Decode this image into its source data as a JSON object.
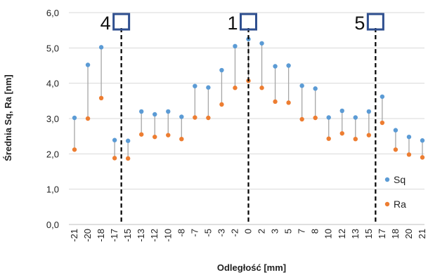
{
  "chart_data": {
    "type": "scatter",
    "title": "",
    "xlabel": "Odległość [mm]",
    "ylabel": "Średnia Sq, Ra [nm]",
    "ylim": [
      0,
      6
    ],
    "y_ticks": [
      "0,0",
      "1,0",
      "2,0",
      "3,0",
      "4,0",
      "5,0",
      "6,0"
    ],
    "grid": "horizontal",
    "legend_position": "right",
    "categories": [
      "-21",
      "-20",
      "-18",
      "-17",
      "-15",
      "-13",
      "-12",
      "-10",
      "-8",
      "-7",
      "-5",
      "-3",
      "-2",
      "0",
      "2",
      "3",
      "5",
      "7",
      "8",
      "10",
      "12",
      "13",
      "15",
      "17",
      "18",
      "20",
      "21"
    ],
    "series": [
      {
        "name": "Sq",
        "color": "#5B9BD5",
        "values": [
          3.02,
          4.52,
          5.02,
          2.39,
          2.37,
          3.2,
          3.12,
          3.2,
          3.05,
          3.92,
          3.88,
          4.37,
          5.05,
          5.25,
          5.13,
          4.48,
          4.5,
          3.93,
          3.85,
          3.03,
          3.22,
          3.03,
          3.2,
          3.62,
          2.67,
          2.48,
          2.38
        ]
      },
      {
        "name": "Ra",
        "color": "#ED7D31",
        "values": [
          2.12,
          3.0,
          3.58,
          1.88,
          1.87,
          2.55,
          2.48,
          2.53,
          2.42,
          3.03,
          3.02,
          3.4,
          3.87,
          4.07,
          3.87,
          3.48,
          3.45,
          2.98,
          3.02,
          2.43,
          2.58,
          2.42,
          2.53,
          2.88,
          2.12,
          1.98,
          1.9
        ]
      }
    ],
    "markers": [
      {
        "label": "4",
        "at_index": 3.5
      },
      {
        "label": "1",
        "at_index": 13
      },
      {
        "label": "5",
        "at_index": 22.5
      }
    ],
    "marker_box_color": "#2F4F8F",
    "stem_color": "#A6A6A6"
  }
}
